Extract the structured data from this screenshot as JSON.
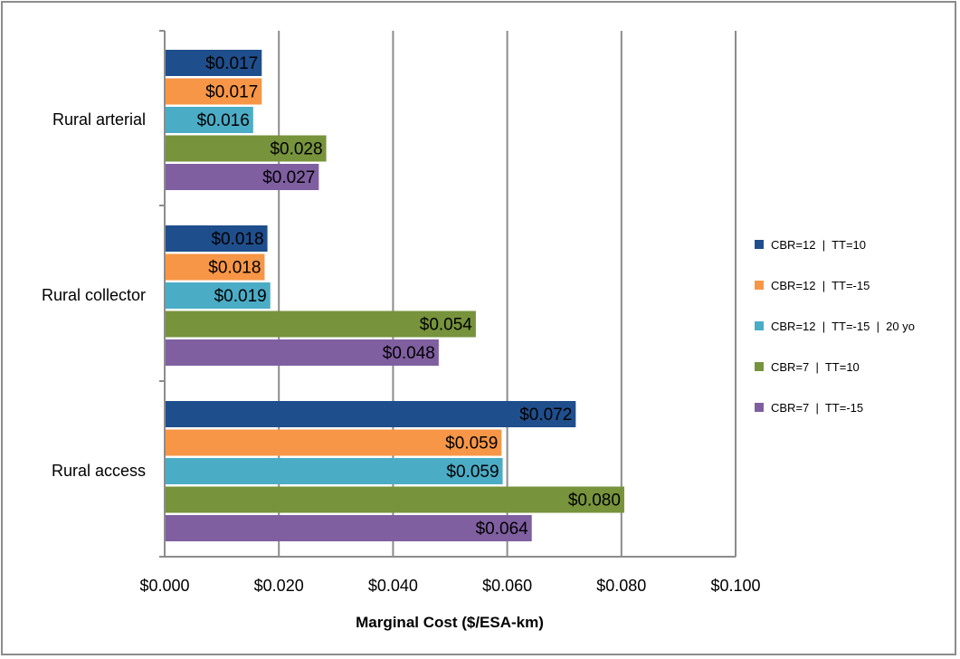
{
  "chart_data": {
    "type": "bar",
    "orientation": "horizontal",
    "categories": [
      "Rural arterial",
      "Rural collector",
      "Rural access"
    ],
    "series": [
      {
        "name": "CBR=12  |  TT=10",
        "color": "#1f4e8c",
        "values": [
          0.017,
          0.018,
          0.072
        ],
        "labels": [
          "$0.017",
          "$0.018",
          "$0.072"
        ]
      },
      {
        "name": "CBR=12  |  TT=-15",
        "color": "#f79646",
        "values": [
          0.017,
          0.0175,
          0.059
        ],
        "labels": [
          "$0.017",
          "$0.018",
          "$0.059"
        ]
      },
      {
        "name": "CBR=12  |  TT=-15  |  20 yo",
        "color": "#4bacc6",
        "values": [
          0.0155,
          0.0185,
          0.0592
        ],
        "labels": [
          "$0.016",
          "$0.019",
          "$0.059"
        ]
      },
      {
        "name": "CBR=7  |  TT=10",
        "color": "#77933c",
        "values": [
          0.0283,
          0.0545,
          0.0805
        ],
        "labels": [
          "$0.028",
          "$0.054",
          "$0.080"
        ]
      },
      {
        "name": "CBR=7  |  TT=-15",
        "color": "#7f5fa0",
        "values": [
          0.027,
          0.048,
          0.0643
        ],
        "labels": [
          "$0.027",
          "$0.048",
          "$0.064"
        ]
      }
    ],
    "xlabel": "Marginal Cost ($/ESA-km)",
    "xlim": [
      0,
      0.1
    ],
    "xticks": [
      "$0.000",
      "$0.020",
      "$0.040",
      "$0.060",
      "$0.080",
      "$0.100"
    ],
    "grid": "vertical",
    "legend": "right"
  }
}
